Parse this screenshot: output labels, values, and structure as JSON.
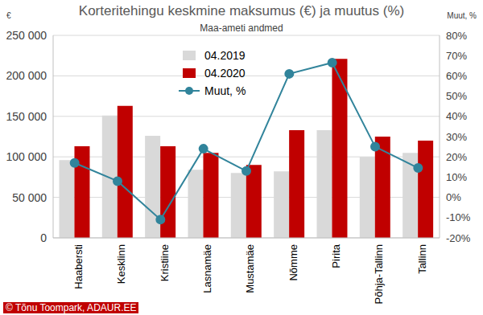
{
  "chart_data": {
    "type": "bar",
    "title": "Korteritehingu keskmine maksumus (€) ja muutus (%)",
    "subtitle": "Maa-ameti andmed",
    "ylabel": "€",
    "y2label": "Muut, %",
    "source": "© Tõnu Toompark, ADAUR.EE",
    "categories": [
      "Haabersti",
      "Kesklinn",
      "Kristiine",
      "Lasnamäe",
      "Mustamäe",
      "Nõmme",
      "Pirita",
      "Põhja-Tallinn",
      "Tallinn"
    ],
    "series": [
      {
        "name": "04.2019",
        "type": "bar",
        "color": "#d9d9d9",
        "values": [
          96000,
          151000,
          126000,
          84000,
          80000,
          82000,
          133000,
          100000,
          105000
        ]
      },
      {
        "name": "04.2020",
        "type": "bar",
        "color": "#c00000",
        "values": [
          113000,
          163000,
          113000,
          105000,
          90000,
          133000,
          221000,
          125000,
          120000
        ]
      },
      {
        "name": "Muut, %",
        "type": "line",
        "axis": "y2",
        "color": "#31849b",
        "marker": "circle",
        "values": [
          17,
          8,
          -11,
          24,
          13,
          61,
          66.5,
          25,
          14.5
        ]
      }
    ],
    "ylim": [
      0,
      250000
    ],
    "yticks": [
      0,
      {
        "value": 50000,
        "label": "50 000"
      },
      {
        "value": 100000,
        "label": "100 000"
      },
      {
        "value": 150000,
        "label": "150 000"
      },
      {
        "value": 200000,
        "label": "200 000"
      },
      {
        "value": 250000,
        "label": "250 000"
      }
    ],
    "y2lim": [
      -20,
      80
    ],
    "y2ticks": [
      {
        "value": -20,
        "label": "-20%"
      },
      {
        "value": -10,
        "label": "-10%"
      },
      {
        "value": 0,
        "label": "0%"
      },
      {
        "value": 10,
        "label": "10%"
      },
      {
        "value": 20,
        "label": "20%"
      },
      {
        "value": 30,
        "label": "30%"
      },
      {
        "value": 40,
        "label": "40%"
      },
      {
        "value": 50,
        "label": "50%"
      },
      {
        "value": 60,
        "label": "60%"
      },
      {
        "value": 70,
        "label": "70%"
      },
      {
        "value": 80,
        "label": "80%"
      }
    ],
    "grid": true,
    "legend": "top-left"
  }
}
